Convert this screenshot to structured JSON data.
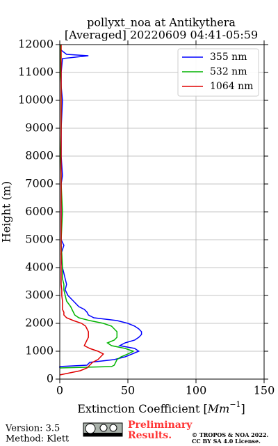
{
  "chart_data": {
    "type": "line",
    "title": "pollyxt_noa at Antikythera",
    "subtitle": "[Averaged] 20220609 04:41-05:59",
    "x_label": [
      "Extinction Coefficient [",
      "Mm",
      "−1",
      "]"
    ],
    "y_label": "Height (m)",
    "y": [
      150,
      200,
      300,
      400,
      450,
      500,
      600,
      700,
      800,
      900,
      1000,
      1100,
      1200,
      1300,
      1400,
      1500,
      1600,
      1700,
      1800,
      1900,
      2000,
      2100,
      2200,
      2300,
      2400,
      2500,
      2600,
      2800,
      3000,
      3200,
      3400,
      3600,
      3800,
      4000,
      4500,
      4800,
      5000,
      6000,
      7000,
      7300,
      8000,
      9000,
      10000,
      10500,
      11000,
      11500,
      11600,
      11650,
      11800,
      12000
    ],
    "series": [
      {
        "name": "355 nm",
        "color": "#0000ff",
        "values": [
          null,
          null,
          null,
          0,
          0,
          20,
          22,
          40,
          48,
          53,
          58,
          55,
          44,
          48,
          55,
          58,
          60,
          60,
          58,
          55,
          50,
          42,
          25,
          21,
          20,
          18,
          14,
          10,
          6,
          4,
          5,
          4,
          3,
          2,
          1,
          3,
          1,
          1,
          1,
          2,
          1,
          1,
          2,
          1,
          1,
          2,
          21,
          5,
          1,
          0
        ]
      },
      {
        "name": "532 nm",
        "color": "#00b400",
        "values": [
          null,
          null,
          null,
          0,
          38,
          40,
          41,
          42,
          45,
          50,
          54,
          48,
          38,
          35,
          40,
          42,
          42,
          42,
          40,
          38,
          32,
          22,
          14,
          11,
          10,
          9,
          8,
          5,
          4,
          3,
          3,
          2,
          2,
          2,
          1.5,
          1,
          1,
          2,
          1,
          1,
          0.5,
          1,
          1,
          1,
          0.5,
          0.5,
          0.5,
          0.5,
          0.5,
          0.5
        ]
      },
      {
        "name": "1064 nm",
        "color": "#e00000",
        "values": [
          0,
          5,
          15,
          20,
          21,
          22,
          24,
          28,
          30,
          32,
          28,
          22,
          18,
          19,
          20,
          21,
          21,
          21,
          20,
          19,
          16,
          10,
          5,
          3,
          3,
          2,
          2,
          2,
          1.5,
          1.5,
          1,
          1,
          1,
          1,
          1,
          1,
          1,
          1,
          1,
          1,
          1,
          1,
          1,
          1,
          1,
          1,
          1,
          1,
          1,
          1
        ]
      }
    ],
    "xlim": [
      0,
      150
    ],
    "xticks": [
      0,
      50,
      100,
      150
    ],
    "ylim": [
      0,
      12000
    ],
    "yticks": [
      0,
      1000,
      2000,
      3000,
      4000,
      5000,
      6000,
      7000,
      8000,
      9000,
      10000,
      11000,
      12000
    ],
    "grid": true,
    "legend": "upper right",
    "footer": {
      "version": "Version: 3.5",
      "method": "Method: Klett",
      "notice": [
        "Preliminary",
        "Results."
      ],
      "copyright": [
        "© TROPOS & NOA 2022.",
        "CC BY SA 4.0 License."
      ]
    }
  }
}
